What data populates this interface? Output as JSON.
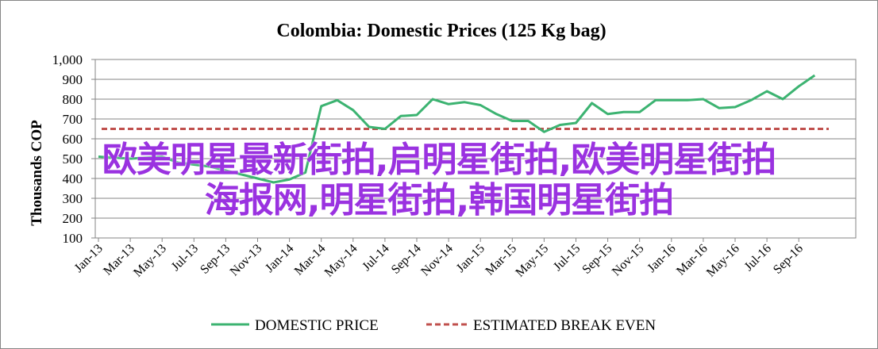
{
  "chart_data": {
    "type": "line",
    "title": "Colombia:  Domestic Prices (125 Kg bag)",
    "ylabel": "Thousands COP",
    "ylim": [
      100,
      1000
    ],
    "yticks": [
      "100",
      "200",
      "300",
      "400",
      "500",
      "600",
      "700",
      "800",
      "900",
      "1,000"
    ],
    "xticks": [
      "Jan-13",
      "Mar-13",
      "May-13",
      "Jul-13",
      "Sep-13",
      "Nov-13",
      "Jan-14",
      "Mar-14",
      "May-14",
      "Jul-14",
      "Sep-14",
      "Nov-14",
      "Jan-15",
      "Mar-15",
      "May-15",
      "Jul-15",
      "Sep-15",
      "Nov-15",
      "Jan-16",
      "Mar-16",
      "May-16",
      "Jul-16",
      "Sep-16"
    ],
    "grid": true,
    "legend_position": "bottom",
    "series": [
      {
        "name": "DOMESTIC PRICE",
        "color": "#3cb371",
        "style": "solid",
        "x": [
          "Jan-13",
          "Feb-13",
          "Mar-13",
          "Apr-13",
          "May-13",
          "Jun-13",
          "Jul-13",
          "Aug-13",
          "Sep-13",
          "Oct-13",
          "Nov-13",
          "Dec-13",
          "Jan-14",
          "Feb-14",
          "Mar-14",
          "Apr-14",
          "May-14",
          "Jun-14",
          "Jul-14",
          "Aug-14",
          "Sep-14",
          "Oct-14",
          "Nov-14",
          "Dec-14",
          "Jan-15",
          "Feb-15",
          "Mar-15",
          "Apr-15",
          "May-15",
          "Jun-15",
          "Jul-15",
          "Aug-15",
          "Sep-15",
          "Oct-15",
          "Nov-15",
          "Dec-15",
          "Jan-16",
          "Feb-16",
          "Mar-16",
          "Apr-16",
          "May-16",
          "Jun-16",
          "Jul-16",
          "Aug-16",
          "Sep-16",
          "Oct-16"
        ],
        "values": [
          510,
          505,
          500,
          505,
          510,
          480,
          470,
          460,
          440,
          420,
          400,
          380,
          395,
          430,
          765,
          795,
          745,
          660,
          650,
          715,
          720,
          800,
          775,
          785,
          770,
          725,
          690,
          690,
          635,
          670,
          680,
          780,
          725,
          735,
          735,
          795,
          795,
          795,
          800,
          755,
          760,
          795,
          840,
          800,
          865,
          920
        ]
      },
      {
        "name": "ESTIMATED BREAK EVEN",
        "color": "#c0504d",
        "style": "dashed",
        "constant": 650
      }
    ]
  },
  "overlay": {
    "line1": "欧美明星最新街拍,启明星街拍,欧美明星街拍",
    "line2": "海报网,明星街拍,韩国明星街拍"
  }
}
